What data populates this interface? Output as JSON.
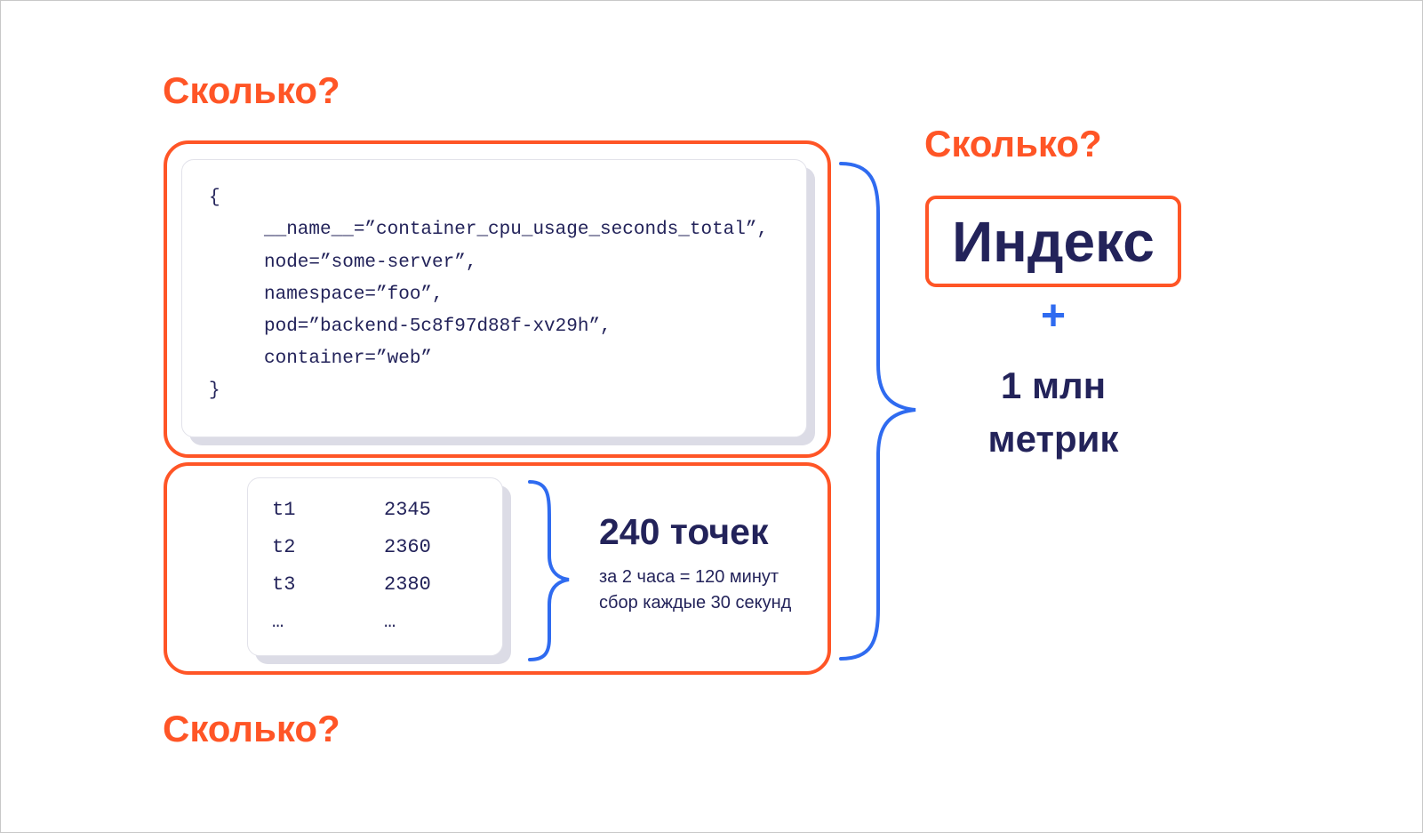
{
  "question_label": "Сколько?",
  "code_block": {
    "open_brace": "{",
    "lines": [
      "__name__=”container_cpu_usage_seconds_total”,",
      "node=”some-server”,",
      "namespace=”foo”,",
      "pod=”backend-5c8f97d88f-xv29h”,",
      "container=”web”"
    ],
    "close_brace": "}"
  },
  "samples": {
    "rows": [
      {
        "t": "t1",
        "v": "2345"
      },
      {
        "t": "t2",
        "v": "2360"
      },
      {
        "t": "t3",
        "v": "2380"
      },
      {
        "t": "…",
        "v": "…"
      }
    ]
  },
  "points": {
    "title": "240 точек",
    "line1": "за 2 часа = 120 минут",
    "line2": "сбор каждые 30 секунд"
  },
  "right": {
    "index_label": "Индекс",
    "plus": "+",
    "metrics_line1": "1 млн",
    "metrics_line2": "метрик"
  },
  "colors": {
    "accent_orange": "#ff5526",
    "navy": "#23235a",
    "brace_blue": "#2f6bf0"
  }
}
